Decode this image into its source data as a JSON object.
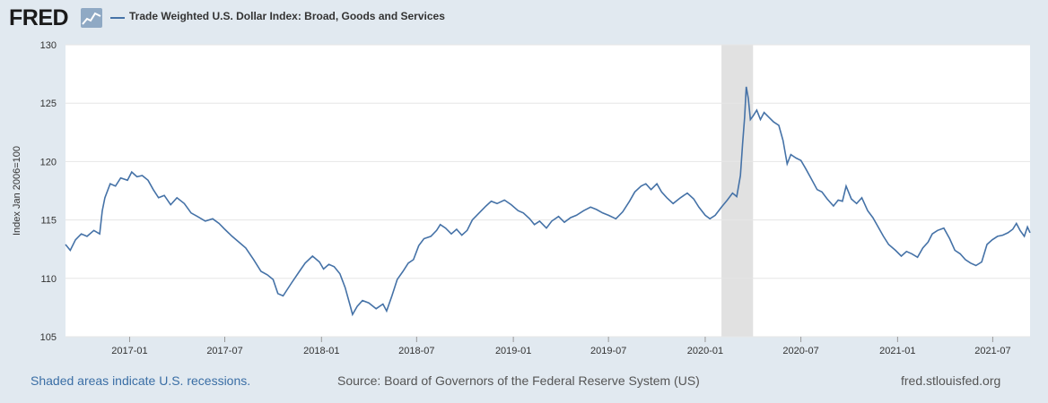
{
  "header": {
    "logo_text": "FRED",
    "legend_label": "Trade Weighted U.S. Dollar Index: Broad, Goods and Services"
  },
  "footer": {
    "recession_note": "Shaded areas indicate U.S. recessions.",
    "source": "Source: Board of Governors of the Federal Reserve System (US)",
    "site": "fred.stlouisfed.org"
  },
  "colors": {
    "series": "#4572a7",
    "recession": "#e1e1e1",
    "grid": "#e6e6e6",
    "background": "#e1e9f0",
    "plot_bg": "#ffffff"
  },
  "chart_data": {
    "type": "line",
    "title": "Trade Weighted U.S. Dollar Index: Broad, Goods and Services",
    "xlabel": "",
    "ylabel": "Index Jan 2006=100",
    "ylim": [
      105,
      130
    ],
    "yticks": [
      105,
      110,
      115,
      120,
      125,
      130
    ],
    "xlim": [
      "2016-09-01",
      "2021-09-10"
    ],
    "xticks": [
      "2017-01",
      "2017-07",
      "2018-01",
      "2018-07",
      "2019-01",
      "2019-07",
      "2020-01",
      "2020-07",
      "2021-01",
      "2021-07"
    ],
    "grid": true,
    "recessions": [
      {
        "start": "2020-02-01",
        "end": "2020-04-01"
      }
    ],
    "series": [
      {
        "name": "Trade Weighted U.S. Dollar Index: Broad, Goods and Services",
        "points": [
          [
            "2016-09-01",
            112.9
          ],
          [
            "2016-09-10",
            112.4
          ],
          [
            "2016-09-20",
            113.3
          ],
          [
            "2016-10-01",
            113.8
          ],
          [
            "2016-10-12",
            113.6
          ],
          [
            "2016-10-25",
            114.1
          ],
          [
            "2016-11-05",
            113.8
          ],
          [
            "2016-11-10",
            115.8
          ],
          [
            "2016-11-15",
            116.9
          ],
          [
            "2016-11-25",
            118.1
          ],
          [
            "2016-12-05",
            117.9
          ],
          [
            "2016-12-15",
            118.6
          ],
          [
            "2016-12-28",
            118.4
          ],
          [
            "2017-01-05",
            119.1
          ],
          [
            "2017-01-15",
            118.7
          ],
          [
            "2017-01-25",
            118.8
          ],
          [
            "2017-02-05",
            118.4
          ],
          [
            "2017-02-15",
            117.6
          ],
          [
            "2017-02-25",
            116.9
          ],
          [
            "2017-03-08",
            117.1
          ],
          [
            "2017-03-20",
            116.3
          ],
          [
            "2017-04-01",
            116.9
          ],
          [
            "2017-04-15",
            116.4
          ],
          [
            "2017-04-28",
            115.6
          ],
          [
            "2017-05-10",
            115.3
          ],
          [
            "2017-05-25",
            114.9
          ],
          [
            "2017-06-08",
            115.1
          ],
          [
            "2017-06-20",
            114.7
          ],
          [
            "2017-07-01",
            114.2
          ],
          [
            "2017-07-15",
            113.6
          ],
          [
            "2017-07-28",
            113.1
          ],
          [
            "2017-08-10",
            112.6
          ],
          [
            "2017-08-25",
            111.6
          ],
          [
            "2017-09-08",
            110.6
          ],
          [
            "2017-09-20",
            110.3
          ],
          [
            "2017-10-01",
            109.9
          ],
          [
            "2017-10-10",
            108.7
          ],
          [
            "2017-10-20",
            108.5
          ],
          [
            "2017-11-05",
            109.6
          ],
          [
            "2017-11-20",
            110.6
          ],
          [
            "2017-12-01",
            111.3
          ],
          [
            "2017-12-15",
            111.9
          ],
          [
            "2017-12-28",
            111.4
          ],
          [
            "2018-01-05",
            110.8
          ],
          [
            "2018-01-15",
            111.2
          ],
          [
            "2018-01-25",
            111.0
          ],
          [
            "2018-02-05",
            110.4
          ],
          [
            "2018-02-15",
            109.2
          ],
          [
            "2018-02-25",
            107.6
          ],
          [
            "2018-03-01",
            106.9
          ],
          [
            "2018-03-10",
            107.6
          ],
          [
            "2018-03-20",
            108.1
          ],
          [
            "2018-04-01",
            107.9
          ],
          [
            "2018-04-15",
            107.4
          ],
          [
            "2018-04-28",
            107.8
          ],
          [
            "2018-05-05",
            107.2
          ],
          [
            "2018-05-15",
            108.5
          ],
          [
            "2018-05-25",
            109.9
          ],
          [
            "2018-06-05",
            110.6
          ],
          [
            "2018-06-15",
            111.3
          ],
          [
            "2018-06-25",
            111.6
          ],
          [
            "2018-07-05",
            112.8
          ],
          [
            "2018-07-15",
            113.4
          ],
          [
            "2018-07-28",
            113.6
          ],
          [
            "2018-08-08",
            114.1
          ],
          [
            "2018-08-15",
            114.6
          ],
          [
            "2018-08-25",
            114.3
          ],
          [
            "2018-09-05",
            113.8
          ],
          [
            "2018-09-15",
            114.2
          ],
          [
            "2018-09-25",
            113.7
          ],
          [
            "2018-10-05",
            114.1
          ],
          [
            "2018-10-15",
            115.0
          ],
          [
            "2018-10-28",
            115.6
          ],
          [
            "2018-11-10",
            116.2
          ],
          [
            "2018-11-20",
            116.6
          ],
          [
            "2018-12-01",
            116.4
          ],
          [
            "2018-12-15",
            116.7
          ],
          [
            "2018-12-28",
            116.3
          ],
          [
            "2019-01-10",
            115.8
          ],
          [
            "2019-01-20",
            115.6
          ],
          [
            "2019-02-01",
            115.1
          ],
          [
            "2019-02-10",
            114.6
          ],
          [
            "2019-02-20",
            114.9
          ],
          [
            "2019-03-05",
            114.3
          ],
          [
            "2019-03-15",
            114.9
          ],
          [
            "2019-03-28",
            115.3
          ],
          [
            "2019-04-08",
            114.8
          ],
          [
            "2019-04-20",
            115.2
          ],
          [
            "2019-05-01",
            115.4
          ],
          [
            "2019-05-15",
            115.8
          ],
          [
            "2019-05-28",
            116.1
          ],
          [
            "2019-06-08",
            115.9
          ],
          [
            "2019-06-20",
            115.6
          ],
          [
            "2019-07-01",
            115.4
          ],
          [
            "2019-07-15",
            115.1
          ],
          [
            "2019-07-28",
            115.7
          ],
          [
            "2019-08-10",
            116.6
          ],
          [
            "2019-08-20",
            117.4
          ],
          [
            "2019-09-01",
            117.9
          ],
          [
            "2019-09-10",
            118.1
          ],
          [
            "2019-09-20",
            117.6
          ],
          [
            "2019-10-01",
            118.1
          ],
          [
            "2019-10-10",
            117.4
          ],
          [
            "2019-10-20",
            116.9
          ],
          [
            "2019-11-01",
            116.4
          ],
          [
            "2019-11-15",
            116.9
          ],
          [
            "2019-11-28",
            117.3
          ],
          [
            "2019-12-10",
            116.8
          ],
          [
            "2019-12-20",
            116.1
          ],
          [
            "2020-01-01",
            115.4
          ],
          [
            "2020-01-10",
            115.1
          ],
          [
            "2020-01-20",
            115.4
          ],
          [
            "2020-02-01",
            116.1
          ],
          [
            "2020-02-12",
            116.7
          ],
          [
            "2020-02-22",
            117.3
          ],
          [
            "2020-03-01",
            117.0
          ],
          [
            "2020-03-08",
            118.8
          ],
          [
            "2020-03-12",
            121.5
          ],
          [
            "2020-03-16",
            123.8
          ],
          [
            "2020-03-19",
            126.4
          ],
          [
            "2020-03-23",
            125.4
          ],
          [
            "2020-03-27",
            123.6
          ],
          [
            "2020-04-01",
            123.9
          ],
          [
            "2020-04-08",
            124.4
          ],
          [
            "2020-04-15",
            123.6
          ],
          [
            "2020-04-22",
            124.2
          ],
          [
            "2020-05-01",
            123.8
          ],
          [
            "2020-05-10",
            123.4
          ],
          [
            "2020-05-20",
            123.1
          ],
          [
            "2020-05-28",
            121.8
          ],
          [
            "2020-06-05",
            119.8
          ],
          [
            "2020-06-12",
            120.6
          ],
          [
            "2020-06-22",
            120.3
          ],
          [
            "2020-07-01",
            120.1
          ],
          [
            "2020-07-10",
            119.4
          ],
          [
            "2020-07-20",
            118.6
          ],
          [
            "2020-08-01",
            117.6
          ],
          [
            "2020-08-10",
            117.4
          ],
          [
            "2020-08-20",
            116.8
          ],
          [
            "2020-09-01",
            116.2
          ],
          [
            "2020-09-10",
            116.7
          ],
          [
            "2020-09-18",
            116.6
          ],
          [
            "2020-09-25",
            117.9
          ],
          [
            "2020-10-05",
            116.8
          ],
          [
            "2020-10-15",
            116.4
          ],
          [
            "2020-10-25",
            116.9
          ],
          [
            "2020-11-05",
            115.8
          ],
          [
            "2020-11-15",
            115.2
          ],
          [
            "2020-11-25",
            114.4
          ],
          [
            "2020-12-05",
            113.6
          ],
          [
            "2020-12-15",
            112.9
          ],
          [
            "2020-12-28",
            112.4
          ],
          [
            "2021-01-08",
            111.9
          ],
          [
            "2021-01-18",
            112.3
          ],
          [
            "2021-01-28",
            112.1
          ],
          [
            "2021-02-08",
            111.8
          ],
          [
            "2021-02-18",
            112.6
          ],
          [
            "2021-02-28",
            113.1
          ],
          [
            "2021-03-08",
            113.8
          ],
          [
            "2021-03-18",
            114.1
          ],
          [
            "2021-03-30",
            114.3
          ],
          [
            "2021-04-10",
            113.4
          ],
          [
            "2021-04-20",
            112.4
          ],
          [
            "2021-04-30",
            112.1
          ],
          [
            "2021-05-10",
            111.6
          ],
          [
            "2021-05-20",
            111.3
          ],
          [
            "2021-05-30",
            111.1
          ],
          [
            "2021-06-10",
            111.4
          ],
          [
            "2021-06-20",
            112.9
          ],
          [
            "2021-06-30",
            113.3
          ],
          [
            "2021-07-10",
            113.6
          ],
          [
            "2021-07-20",
            113.7
          ],
          [
            "2021-07-30",
            113.9
          ],
          [
            "2021-08-08",
            114.2
          ],
          [
            "2021-08-15",
            114.7
          ],
          [
            "2021-08-22",
            114.1
          ],
          [
            "2021-08-30",
            113.6
          ],
          [
            "2021-09-05",
            114.4
          ],
          [
            "2021-09-10",
            113.9
          ]
        ]
      }
    ]
  }
}
